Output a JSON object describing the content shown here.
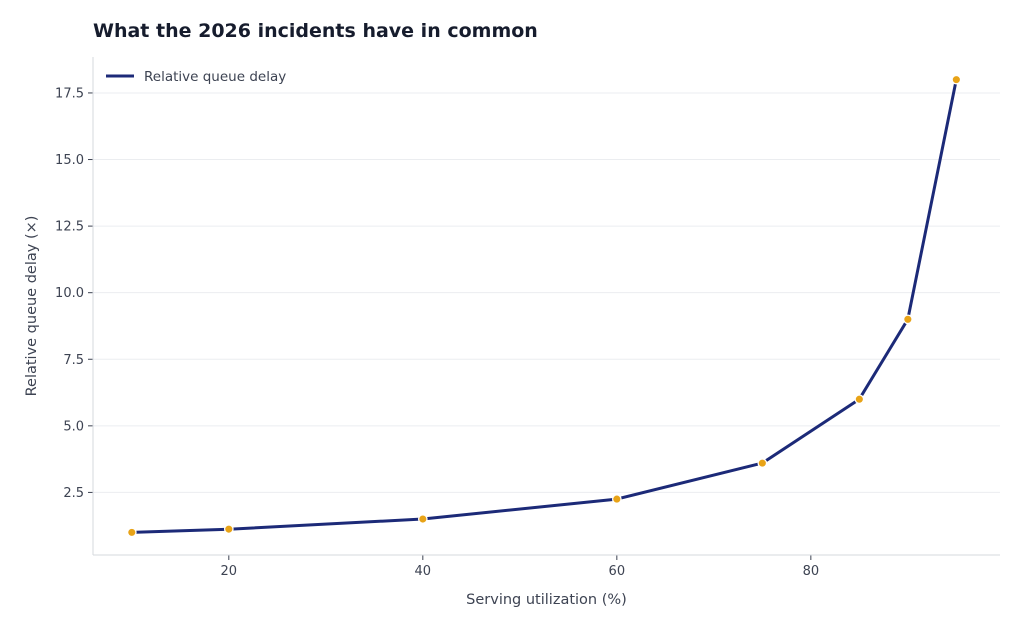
{
  "chart_data": {
    "type": "line",
    "title": "What the 2026 incidents have in common",
    "xlabel": "Serving utilization (%)",
    "ylabel": "Relative queue delay (×)",
    "xlim": [
      6,
      99.5
    ],
    "ylim": [
      0.15,
      18.85
    ],
    "x_ticks": [
      20,
      40,
      60,
      80
    ],
    "y_ticks": [
      2.5,
      5.0,
      7.5,
      10.0,
      12.5,
      15.0,
      17.5
    ],
    "x_tick_labels": [
      "20",
      "40",
      "60",
      "80"
    ],
    "y_tick_labels": [
      "2.5",
      "5.0",
      "7.5",
      "10.0",
      "12.5",
      "15.0",
      "17.5"
    ],
    "grid": "horizontal",
    "legend": {
      "position": "top-left",
      "entries": [
        "Relative queue delay"
      ]
    },
    "series": [
      {
        "name": "Relative queue delay",
        "color": "#1c2a78",
        "marker_color": "#e8a317",
        "x": [
          10,
          20,
          40,
          60,
          75,
          85,
          90,
          95
        ],
        "y": [
          1.0,
          1.12,
          1.5,
          2.25,
          3.6,
          6.0,
          9.0,
          18.0
        ]
      }
    ]
  }
}
